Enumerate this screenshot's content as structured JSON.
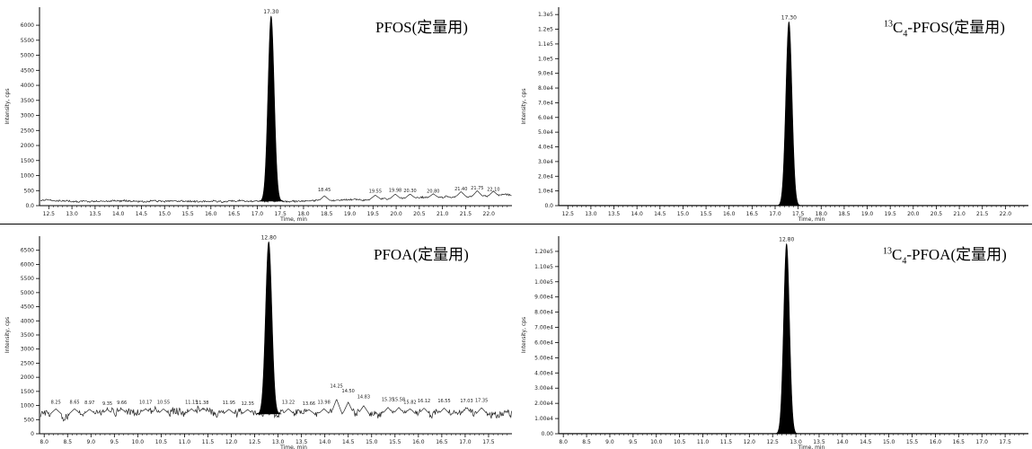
{
  "chart_data": [
    {
      "type": "line",
      "panel": "top-left",
      "title": "PFOS(定量用)",
      "xlabel": "Time, min",
      "ylabel": "Intensity, cps",
      "x_ticks": [
        "12.5",
        "13.0",
        "13.5",
        "14.0",
        "14.5",
        "15.0",
        "15.5",
        "16.0",
        "16.5",
        "17.0",
        "17.5",
        "18.0",
        "18.5",
        "19.0",
        "19.5",
        "20.0",
        "20.5",
        "21.0",
        "21.5",
        "22.0"
      ],
      "y_ticks": [
        "0.0",
        "500",
        "1000",
        "1500",
        "2000",
        "2500",
        "3000",
        "3500",
        "4000",
        "4500",
        "5000",
        "5500",
        "6000"
      ],
      "xlim": [
        12.3,
        22.5
      ],
      "ylim": [
        0,
        6600
      ],
      "peak": {
        "x": 17.3,
        "y": 6300,
        "width": 0.3,
        "label": "17.30",
        "filled": true
      },
      "baseline": 150,
      "noise_labels": [
        {
          "x": 18.45,
          "y": 420,
          "text": "18.45"
        },
        {
          "x": 19.55,
          "y": 380,
          "text": "19.55"
        },
        {
          "x": 19.98,
          "y": 410,
          "text": "19.98"
        },
        {
          "x": 20.3,
          "y": 390,
          "text": "20.30"
        },
        {
          "x": 20.8,
          "y": 370,
          "text": "20.80"
        },
        {
          "x": 21.4,
          "y": 450,
          "text": "21.40"
        },
        {
          "x": 21.75,
          "y": 480,
          "text": "21.75"
        },
        {
          "x": 22.1,
          "y": 430,
          "text": "22.10"
        }
      ]
    },
    {
      "type": "line",
      "panel": "top-right",
      "title_sup": "13",
      "title_c": "C",
      "title_sub": "4",
      "title_rest": "-PFOS(定量用)",
      "xlabel": "Time, min",
      "ylabel": "Intensity, cps",
      "x_ticks": [
        "12.5",
        "13.0",
        "13.5",
        "14.0",
        "14.5",
        "15.0",
        "15.5",
        "16.0",
        "16.5",
        "17.0",
        "17.5",
        "18.0",
        "18.5",
        "19.0",
        "19.5",
        "20.0",
        "20.5",
        "21.0",
        "21.5",
        "22.0"
      ],
      "y_ticks": [
        "0.0",
        "1.0e4",
        "2.0e4",
        "3.0e4",
        "4.0e4",
        "5.0e4",
        "6.0e4",
        "7.0e4",
        "8.0e4",
        "9.0e4",
        "1.0e5",
        "1.1e5",
        "1.2e5",
        "1.3e5"
      ],
      "xlim": [
        12.3,
        22.5
      ],
      "ylim": [
        0,
        135000
      ],
      "peak": {
        "x": 17.3,
        "y": 125000,
        "width": 0.3,
        "label": "17.30",
        "filled": true
      },
      "baseline": 0
    },
    {
      "type": "line",
      "panel": "bottom-left",
      "title": "PFOA(定量用)",
      "xlabel": "Time, min",
      "ylabel": "Intensity, cps",
      "x_ticks": [
        "8.0",
        "8.5",
        "9.0",
        "9.5",
        "10.0",
        "10.5",
        "11.0",
        "11.5",
        "12.0",
        "12.5",
        "13.0",
        "13.5",
        "14.0",
        "14.5",
        "15.0",
        "15.5",
        "16.0",
        "16.5",
        "17.0",
        "17.5"
      ],
      "y_ticks": [
        "0",
        "500",
        "1000",
        "1500",
        "2000",
        "2500",
        "3000",
        "3500",
        "4000",
        "4500",
        "5000",
        "5500",
        "6000",
        "6500"
      ],
      "xlim": [
        7.9,
        18.0
      ],
      "ylim": [
        0,
        7000
      ],
      "peak": {
        "x": 12.8,
        "y": 6800,
        "width": 0.3,
        "label": "12.80",
        "filled": true
      },
      "baseline": 700,
      "noise_labels": [
        {
          "x": 8.25,
          "y": 1000,
          "text": "8.25"
        },
        {
          "x": 8.65,
          "y": 1010,
          "text": "8.65"
        },
        {
          "x": 8.97,
          "y": 980,
          "text": "8.97"
        },
        {
          "x": 9.35,
          "y": 960,
          "text": "9.35"
        },
        {
          "x": 9.66,
          "y": 990,
          "text": "9.66"
        },
        {
          "x": 10.17,
          "y": 1010,
          "text": "10.17"
        },
        {
          "x": 10.55,
          "y": 1000,
          "text": "10.55"
        },
        {
          "x": 11.15,
          "y": 1010,
          "text": "11.15"
        },
        {
          "x": 11.38,
          "y": 990,
          "text": "11.38"
        },
        {
          "x": 11.95,
          "y": 980,
          "text": "11.95"
        },
        {
          "x": 12.35,
          "y": 960,
          "text": "12.35"
        },
        {
          "x": 13.22,
          "y": 1010,
          "text": "13.22"
        },
        {
          "x": 13.66,
          "y": 960,
          "text": "13.66"
        },
        {
          "x": 13.98,
          "y": 1010,
          "text": "13.98"
        },
        {
          "x": 14.25,
          "y": 1580,
          "text": "14.25"
        },
        {
          "x": 14.5,
          "y": 1400,
          "text": "14.50"
        },
        {
          "x": 14.83,
          "y": 1190,
          "text": "14.83"
        },
        {
          "x": 15.35,
          "y": 1090,
          "text": "15.35"
        },
        {
          "x": 15.58,
          "y": 1090,
          "text": "15.58"
        },
        {
          "x": 15.82,
          "y": 1010,
          "text": "15.82"
        },
        {
          "x": 16.12,
          "y": 1050,
          "text": "16.12"
        },
        {
          "x": 16.55,
          "y": 1050,
          "text": "16.55"
        },
        {
          "x": 17.03,
          "y": 1050,
          "text": "17.03"
        },
        {
          "x": 17.35,
          "y": 1070,
          "text": "17.35"
        }
      ]
    },
    {
      "type": "line",
      "panel": "bottom-right",
      "title_sup": "13",
      "title_c": "C",
      "title_sub": "4",
      "title_rest": "-PFOA(定量用)",
      "xlabel": "Time, min",
      "ylabel": "Intensity, cps",
      "x_ticks": [
        "8.0",
        "8.5",
        "9.0",
        "9.5",
        "10.0",
        "10.5",
        "11.0",
        "11.5",
        "12.0",
        "12.5",
        "13.0",
        "13.5",
        "14.0",
        "14.5",
        "15.0",
        "15.5",
        "16.0",
        "16.5",
        "17.0",
        "17.5"
      ],
      "y_ticks": [
        "0.00",
        "1.00e4",
        "2.00e4",
        "3.00e4",
        "4.00e4",
        "5.00e4",
        "6.00e4",
        "7.00e4",
        "8.00e4",
        "9.00e4",
        "1.00e5",
        "1.10e5",
        "1.20e5"
      ],
      "xlim": [
        7.9,
        18.0
      ],
      "ylim": [
        0,
        130000
      ],
      "peak": {
        "x": 12.8,
        "y": 125000,
        "width": 0.28,
        "label": "12.80",
        "filled": true
      },
      "baseline": 0
    }
  ]
}
